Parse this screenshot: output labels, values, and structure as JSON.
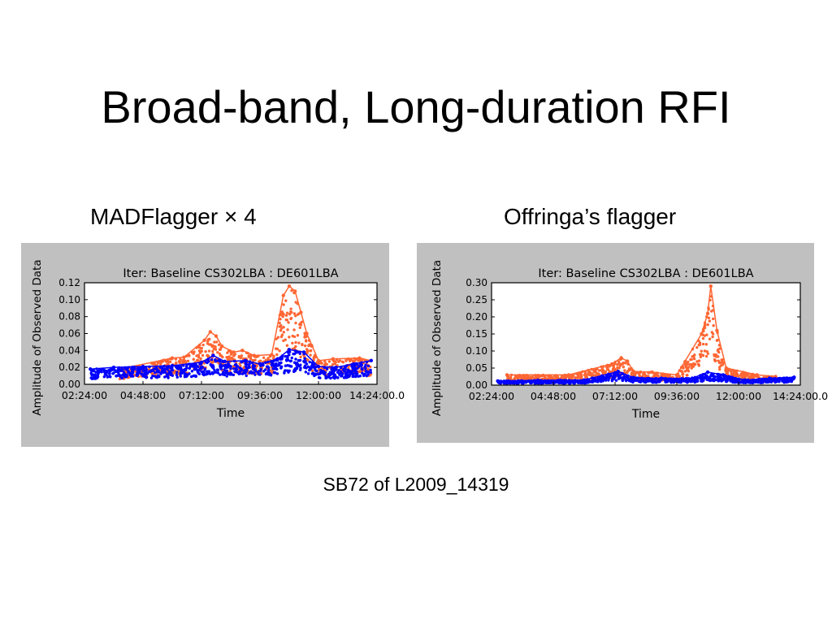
{
  "slide": {
    "title": "Broad-band, Long-duration RFI",
    "left_caption": "MADFlagger × 4",
    "right_caption": "Offringa’s flagger",
    "footnote": "SB72 of L2009_14319"
  },
  "colors": {
    "flagged": "#ff6633",
    "unflagged": "#0000ff",
    "panel_background": "#c0c0c0",
    "axes_background": "#ffffff"
  },
  "chart_data": [
    {
      "type": "scatter",
      "title": "Iter: Baseline CS302LBA : DE601LBA",
      "xlabel": "Time",
      "ylabel": "Amplitude of Observed Data",
      "x_tick_labels": [
        "02:24:00",
        "04:48:00",
        "07:12:00",
        "09:36:00",
        "12:00:00",
        "14:24:00.0"
      ],
      "yticks": [
        0.0,
        0.02,
        0.04,
        0.06,
        0.08,
        0.1,
        0.12
      ],
      "y_tick_labels": [
        "0.00",
        "0.02",
        "0.04",
        "0.06",
        "0.08",
        "0.10",
        "0.12"
      ],
      "ylim": [
        0,
        0.12
      ],
      "grid": false,
      "series": [
        {
          "color": "#ff6633",
          "points": [
            [
              1.2,
              0.018
            ],
            [
              3.0,
              0.031
            ],
            [
              3.4,
              0.032
            ],
            [
              4.1,
              0.052
            ],
            [
              4.3,
              0.062
            ],
            [
              4.5,
              0.057
            ],
            [
              4.7,
              0.045
            ],
            [
              5.1,
              0.038
            ],
            [
              5.4,
              0.04
            ],
            [
              5.8,
              0.034
            ],
            [
              6.4,
              0.035
            ],
            [
              6.8,
              0.105
            ],
            [
              7.0,
              0.116
            ],
            [
              7.2,
              0.11
            ],
            [
              7.4,
              0.085
            ],
            [
              7.6,
              0.06
            ],
            [
              8.0,
              0.028
            ],
            [
              8.5,
              0.03
            ],
            [
              9.4,
              0.031
            ],
            [
              9.8,
              0.028
            ]
          ]
        },
        {
          "color": "#0000ff",
          "points": [
            [
              0.2,
              0.018
            ],
            [
              1.0,
              0.02
            ],
            [
              2.0,
              0.021
            ],
            [
              3.0,
              0.022
            ],
            [
              4.0,
              0.026
            ],
            [
              4.4,
              0.034
            ],
            [
              4.8,
              0.027
            ],
            [
              5.5,
              0.028
            ],
            [
              6.0,
              0.024
            ],
            [
              6.6,
              0.03
            ],
            [
              7.0,
              0.041
            ],
            [
              7.5,
              0.038
            ],
            [
              8.0,
              0.021
            ],
            [
              8.6,
              0.02
            ],
            [
              9.2,
              0.024
            ],
            [
              9.8,
              0.028
            ]
          ]
        }
      ]
    },
    {
      "type": "scatter",
      "title": "Iter: Baseline CS302LBA : DE601LBA",
      "xlabel": "Time",
      "ylabel": "Amplitude of Observed Data",
      "x_tick_labels": [
        "02:24:00",
        "04:48:00",
        "07:12:00",
        "09:36:00",
        "12:00:00",
        "14:24:00.0"
      ],
      "yticks": [
        0.0,
        0.05,
        0.1,
        0.15,
        0.2,
        0.25,
        0.3
      ],
      "y_tick_labels": [
        "0.00",
        "0.05",
        "0.10",
        "0.15",
        "0.20",
        "0.25",
        "0.30"
      ],
      "ylim": [
        0,
        0.3
      ],
      "grid": false,
      "series": [
        {
          "color": "#ff6633",
          "points": [
            [
              0.5,
              0.03
            ],
            [
              2.5,
              0.03
            ],
            [
              3.9,
              0.062
            ],
            [
              4.2,
              0.08
            ],
            [
              4.4,
              0.07
            ],
            [
              4.6,
              0.04
            ],
            [
              5.2,
              0.038
            ],
            [
              6.0,
              0.03
            ],
            [
              6.8,
              0.15
            ],
            [
              7.0,
              0.21
            ],
            [
              7.1,
              0.29
            ],
            [
              7.3,
              0.16
            ],
            [
              7.6,
              0.05
            ],
            [
              8.6,
              0.03
            ],
            [
              9.2,
              0.025
            ]
          ]
        },
        {
          "color": "#0000ff",
          "points": [
            [
              0.2,
              0.012
            ],
            [
              1.5,
              0.014
            ],
            [
              3.0,
              0.015
            ],
            [
              4.1,
              0.04
            ],
            [
              4.6,
              0.022
            ],
            [
              5.5,
              0.02
            ],
            [
              6.5,
              0.02
            ],
            [
              7.0,
              0.038
            ],
            [
              7.5,
              0.03
            ],
            [
              8.2,
              0.015
            ],
            [
              9.0,
              0.02
            ],
            [
              9.8,
              0.023
            ]
          ]
        }
      ]
    }
  ]
}
